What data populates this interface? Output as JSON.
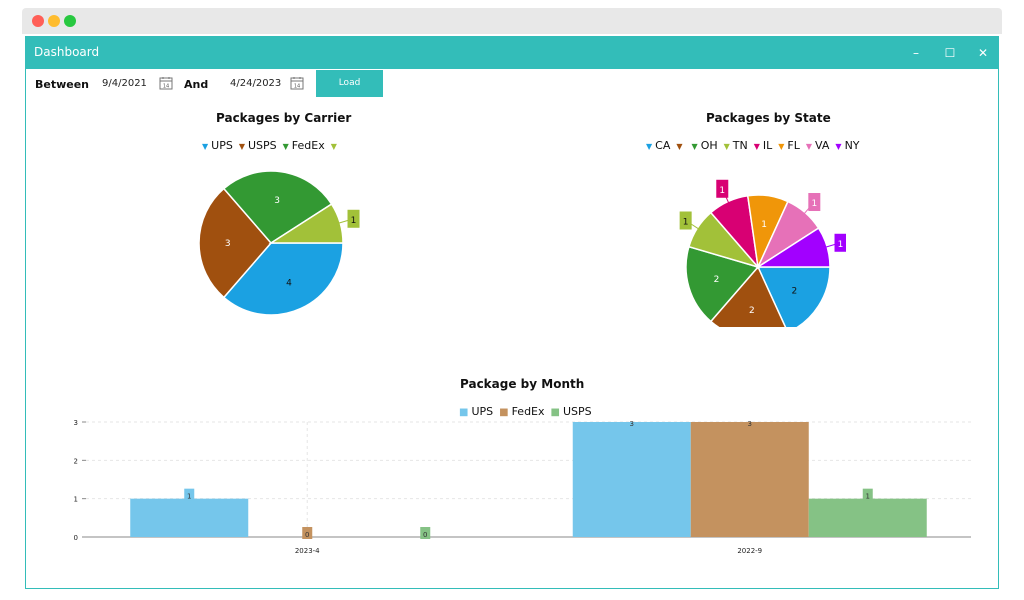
{
  "window": {
    "title": "Dashboard",
    "controls": {
      "minimize": "–",
      "maximize": "☐",
      "close": "✕"
    }
  },
  "toolbar": {
    "between_label": "Between",
    "start_date": "9/4/2021",
    "and_label": "And",
    "end_date": "4/24/2023",
    "calendar_icon_text": "14",
    "load_label": "Load"
  },
  "colors": {
    "accent": "#33bdb9",
    "ups": "#1ba1e2",
    "usps_pie": "#a0500f",
    "fedex_pie": "#339933",
    "unknown_pie": "#a2c139"
  },
  "chart_data": [
    {
      "type": "pie",
      "title": "Packages by Carrier",
      "legend": [
        {
          "name": "UPS",
          "color": "#1ba1e2"
        },
        {
          "name": "USPS",
          "color": "#a0500f"
        },
        {
          "name": "FedEx",
          "color": "#339933"
        },
        {
          "name": "",
          "color": "#a2c139"
        }
      ],
      "slices": [
        {
          "label": "UPS",
          "value": 4,
          "color": "#1ba1e2"
        },
        {
          "label": "USPS",
          "value": 3,
          "color": "#a0500f"
        },
        {
          "label": "FedEx",
          "value": 3,
          "color": "#339933"
        },
        {
          "label": "",
          "value": 1,
          "color": "#a2c139",
          "callout": true
        }
      ]
    },
    {
      "type": "pie",
      "title": "Packages by State",
      "legend": [
        {
          "name": "CA",
          "color": "#1ba1e2"
        },
        {
          "name": "",
          "color": "#a0500f"
        },
        {
          "name": "OH",
          "color": "#339933"
        },
        {
          "name": "TN",
          "color": "#a2c139"
        },
        {
          "name": "IL",
          "color": "#d80073"
        },
        {
          "name": "FL",
          "color": "#f09609"
        },
        {
          "name": "VA",
          "color": "#e671b8"
        },
        {
          "name": "NY",
          "color": "#a200ff"
        }
      ],
      "slices": [
        {
          "label": "CA",
          "value": 2,
          "color": "#1ba1e2"
        },
        {
          "label": "",
          "value": 2,
          "color": "#a0500f"
        },
        {
          "label": "OH",
          "value": 2,
          "color": "#339933"
        },
        {
          "label": "TN",
          "value": 1,
          "color": "#a2c139",
          "callout": true
        },
        {
          "label": "IL",
          "value": 1,
          "color": "#d80073",
          "callout": true
        },
        {
          "label": "FL",
          "value": 1,
          "color": "#f09609"
        },
        {
          "label": "VA",
          "value": 1,
          "color": "#e671b8",
          "callout": true
        },
        {
          "label": "NY",
          "value": 1,
          "color": "#a200ff",
          "callout": true
        }
      ]
    },
    {
      "type": "bar",
      "title": "Package by Month",
      "categories": [
        "2023-4",
        "2022-9"
      ],
      "series": [
        {
          "name": "UPS",
          "color": "#75c6eb",
          "legend_color": "#1ba1e2",
          "values": [
            1,
            3
          ]
        },
        {
          "name": "FedEx",
          "color": "#c4925f",
          "legend_color": "#a0500f",
          "values": [
            0,
            3
          ]
        },
        {
          "name": "USPS",
          "color": "#85c285",
          "legend_color": "#339933",
          "values": [
            0,
            1
          ]
        }
      ],
      "ylim": [
        0,
        3
      ],
      "yticks": [
        "0",
        "1",
        "2",
        "3"
      ],
      "grid": true,
      "legend_position": "top"
    }
  ]
}
